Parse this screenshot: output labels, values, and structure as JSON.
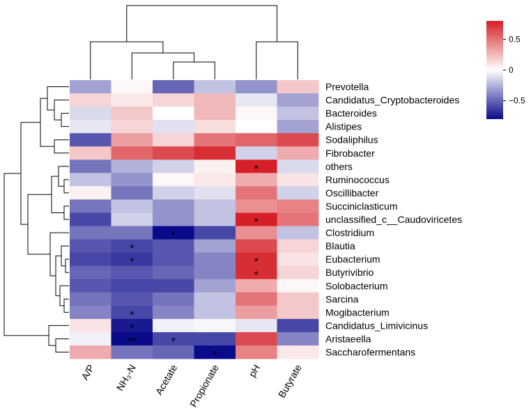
{
  "chart_data": {
    "type": "heatmap",
    "title": "",
    "columns": [
      "A/P",
      "NH₃-N",
      "Acetate",
      "Propionate",
      "pH",
      "Butyrate"
    ],
    "rows": [
      "Prevotella",
      "Candidatus_Cryptobacteroides",
      "Bacteroides",
      "Alistipes",
      "Sodaliphilus",
      "Fibrobacter",
      "others",
      "Ruminococcus",
      "Oscillibacter",
      "Succiniclasticum",
      "unclassified_c__Caudoviricetes",
      "Clostridium",
      "Blautia",
      "Eubacterium",
      "Butyrivibrio",
      "Solobacterium",
      "Sarcina",
      "Mogibacterium",
      "Candidatus_Limivicinus",
      "Aristaeella",
      "Saccharofermentans"
    ],
    "values": [
      [
        -0.3,
        0.03,
        -0.5,
        -0.2,
        -0.35,
        0.2
      ],
      [
        0.15,
        0.08,
        0.15,
        0.25,
        -0.08,
        -0.3
      ],
      [
        -0.12,
        0.2,
        0.0,
        0.25,
        0.03,
        -0.2
      ],
      [
        -0.08,
        0.15,
        -0.1,
        0.12,
        0.0,
        -0.3
      ],
      [
        -0.55,
        0.35,
        0.15,
        0.5,
        0.55,
        0.65
      ],
      [
        0.2,
        0.55,
        0.65,
        0.75,
        -0.15,
        0.3
      ],
      [
        -0.45,
        -0.25,
        -0.15,
        0.05,
        0.85,
        -0.12
      ],
      [
        -0.2,
        -0.35,
        0.03,
        0.08,
        0.3,
        0.1
      ],
      [
        0.05,
        -0.45,
        -0.15,
        -0.1,
        0.5,
        -0.15
      ],
      [
        -0.45,
        -0.2,
        -0.35,
        -0.2,
        0.4,
        0.45
      ],
      [
        -0.6,
        -0.15,
        -0.35,
        -0.2,
        0.8,
        0.5
      ],
      [
        -0.45,
        -0.45,
        -0.8,
        -0.6,
        0.4,
        -0.2
      ],
      [
        -0.55,
        -0.6,
        -0.55,
        -0.3,
        0.65,
        0.15
      ],
      [
        -0.6,
        -0.65,
        -0.55,
        -0.4,
        0.75,
        0.1
      ],
      [
        -0.5,
        -0.55,
        -0.5,
        -0.4,
        0.75,
        0.15
      ],
      [
        -0.55,
        -0.6,
        -0.6,
        -0.3,
        0.3,
        0.03
      ],
      [
        -0.45,
        -0.55,
        -0.45,
        -0.2,
        0.5,
        0.2
      ],
      [
        -0.4,
        -0.6,
        -0.4,
        -0.2,
        0.35,
        0.2
      ],
      [
        0.1,
        -0.75,
        -0.05,
        -0.03,
        -0.08,
        -0.6
      ],
      [
        -0.05,
        -0.85,
        -0.6,
        -0.6,
        0.65,
        -0.4
      ],
      [
        0.3,
        -0.45,
        -0.5,
        -0.8,
        0.45,
        0.08
      ]
    ],
    "significance": [
      [
        "",
        "",
        "",
        "",
        "",
        ""
      ],
      [
        "",
        "",
        "",
        "",
        "",
        ""
      ],
      [
        "",
        "",
        "",
        "",
        "",
        ""
      ],
      [
        "",
        "",
        "",
        "",
        "",
        ""
      ],
      [
        "",
        "",
        "",
        "",
        "",
        ""
      ],
      [
        "",
        "",
        "",
        "",
        "",
        ""
      ],
      [
        "",
        "",
        "",
        "",
        "*",
        ""
      ],
      [
        "",
        "",
        "",
        "",
        "",
        ""
      ],
      [
        "",
        "",
        "",
        "",
        "",
        ""
      ],
      [
        "",
        "",
        "",
        "",
        "",
        ""
      ],
      [
        "",
        "",
        "",
        "",
        "*",
        ""
      ],
      [
        "",
        "",
        "*",
        "",
        "",
        ""
      ],
      [
        "",
        "*",
        "",
        "",
        "",
        ""
      ],
      [
        "",
        "*",
        "",
        "",
        "*",
        ""
      ],
      [
        "",
        "",
        "",
        "",
        "*",
        ""
      ],
      [
        "",
        "",
        "",
        "",
        "",
        ""
      ],
      [
        "",
        "",
        "",
        "",
        "",
        ""
      ],
      [
        "",
        "*",
        "",
        "",
        "",
        ""
      ],
      [
        "",
        "*",
        "",
        "",
        "",
        ""
      ],
      [
        "",
        "**",
        "*",
        "",
        "",
        ""
      ],
      [
        "",
        "",
        "",
        "*",
        "",
        ""
      ]
    ],
    "colorbar": {
      "min": -0.8,
      "max": 0.8,
      "ticks": [
        0.5,
        0,
        -0.5
      ],
      "tick_labels": [
        "0.5",
        "0",
        "−0.5"
      ],
      "low_color": "#0a0a8a",
      "mid_color": "#ffffff",
      "high_color": "#d42026"
    },
    "row_dendrogram": "yes",
    "column_dendrogram": "yes"
  }
}
